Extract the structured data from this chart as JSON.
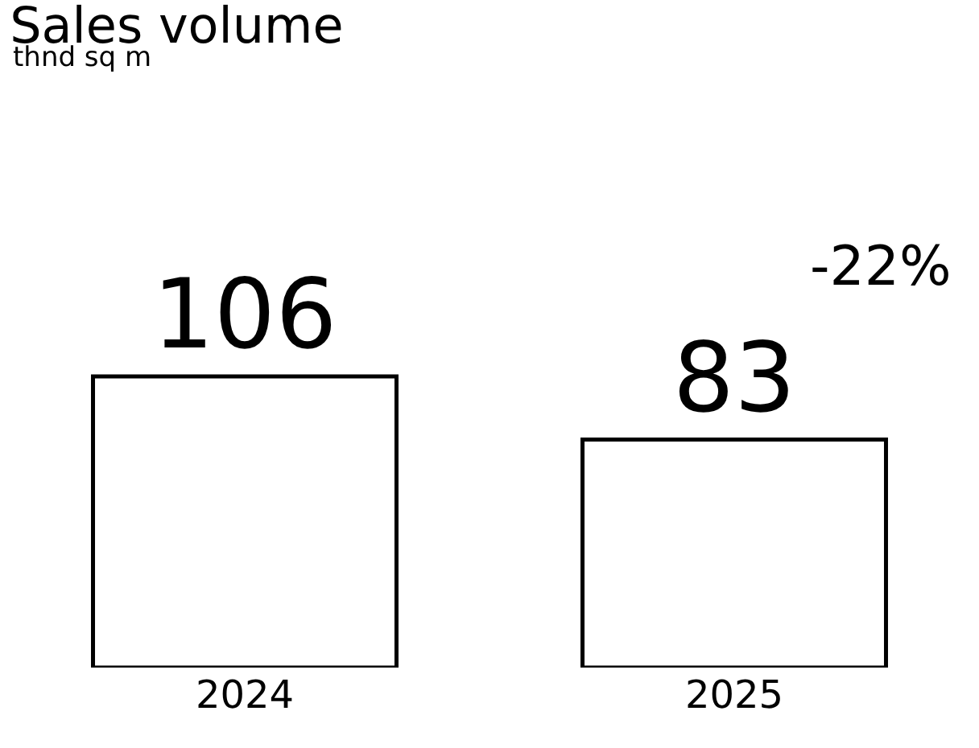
{
  "chart_data": {
    "type": "bar",
    "title": "Sales volume",
    "subtitle": "thnd sq m",
    "categories": [
      "2024",
      "2025"
    ],
    "values": [
      106,
      83
    ],
    "color": "#ffffff",
    "data_labels": true,
    "annotations": [
      {
        "text": "-22%",
        "x": "2025",
        "y": 83
      }
    ],
    "legend": false
  }
}
